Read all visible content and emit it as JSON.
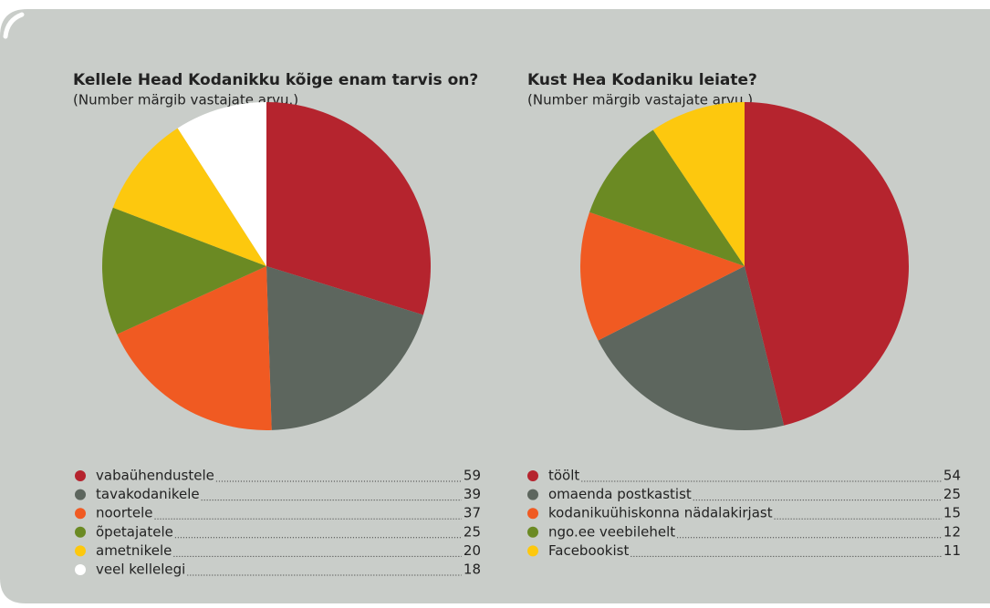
{
  "chart_data": [
    {
      "type": "pie",
      "title": "Kellele Head Kodanikku kõige enam tarvis on?",
      "subtitle": "(Number märgib vastajate arvu.)",
      "categories": [
        "vabaühendustele",
        "tavakodanikele",
        "noortele",
        "õpetajatele",
        "ametnikele",
        "veel kellelegi"
      ],
      "values": [
        59,
        39,
        37,
        25,
        20,
        18
      ],
      "colors": [
        "#b5242e",
        "#5d665e",
        "#f05a22",
        "#6b8a23",
        "#fdc80e",
        "#ffffff"
      ]
    },
    {
      "type": "pie",
      "title": "Kust Hea Kodaniku leiate?",
      "subtitle": "(Number märgib vastajate arvu.)",
      "categories": [
        "töölt",
        "omaenda postkastist",
        "kodanikuühiskonna nädalakirjast",
        "ngo.ee veebilehelt",
        "Facebookist"
      ],
      "values": [
        54,
        25,
        15,
        12,
        11
      ],
      "colors": [
        "#b5242e",
        "#5d665e",
        "#f05a22",
        "#6b8a23",
        "#fdc80e"
      ]
    }
  ]
}
